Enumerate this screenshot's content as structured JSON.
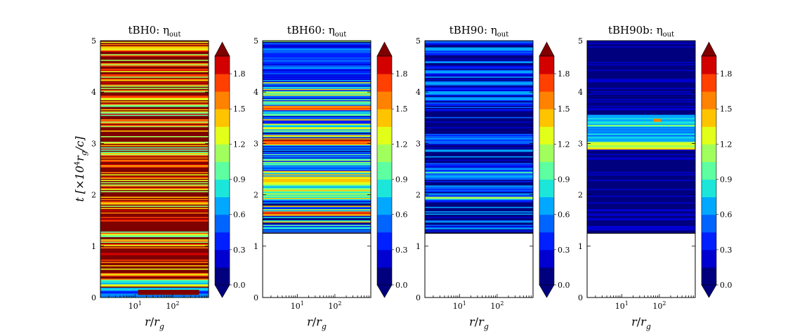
{
  "colors": {
    "jet": [
      "#00007f",
      "#0000d0",
      "#0020ff",
      "#0064ff",
      "#00a8ff",
      "#1ce6da",
      "#5dffa0",
      "#a0ff5d",
      "#e2ff1a",
      "#ffc400",
      "#ff8200",
      "#ff4000",
      "#d30000"
    ],
    "over": "#7f0000",
    "under": "#00007f"
  },
  "chart_data": [
    {
      "type": "heatmap",
      "run": "tBH0",
      "title": "tBH0: η",
      "title_sub": "out",
      "xscale": "log",
      "xlim": [
        1.2,
        900
      ],
      "ylim": [
        0,
        5
      ],
      "xticks": [
        {
          "value": 10,
          "base": "10",
          "exp": "1"
        },
        {
          "value": 100,
          "base": "10",
          "exp": "2"
        }
      ],
      "yticks": [
        "0",
        "1",
        "2",
        "3",
        "4",
        "5"
      ],
      "y_label": {
        "main": "t [×10",
        "exp": "4",
        "r": "r",
        "g": "g",
        "c": "/c]"
      },
      "x_label": {
        "r1": "r",
        "slash": "/",
        "r2": "r",
        "g": "g"
      },
      "data_start_t": 0.0,
      "base_level": 1.85,
      "variability": 0.9,
      "bands": [
        {
          "t": 0.1,
          "level": 0.2,
          "width": 0.1
        },
        {
          "t": 0.3,
          "level": 0.5,
          "width": 0.05
        }
      ],
      "patches": [
        {
          "t0": 0.05,
          "t1": 0.15,
          "r0": 12,
          "r1": 500,
          "level": 2.0
        }
      ],
      "colorbar": {
        "levels": [
          0.0,
          0.3,
          0.6,
          0.9,
          1.2,
          1.5,
          1.8
        ]
      }
    },
    {
      "type": "heatmap",
      "run": "tBH60",
      "title": "tBH60: η",
      "title_sub": "out",
      "xscale": "log",
      "xlim": [
        1.2,
        900
      ],
      "ylim": [
        0,
        5
      ],
      "xticks": [
        {
          "value": 10,
          "base": "10",
          "exp": "1"
        },
        {
          "value": 100,
          "base": "10",
          "exp": "2"
        }
      ],
      "yticks": [
        "0",
        "1",
        "2",
        "3",
        "4",
        "5"
      ],
      "x_label": {
        "r1": "r",
        "slash": "/",
        "r2": "r",
        "g": "g"
      },
      "data_start_t": 1.25,
      "base_level": 0.75,
      "variability": 0.75,
      "bands": [
        {
          "t": 1.65,
          "level": 1.9,
          "width": 0.04
        },
        {
          "t": 2.25,
          "level": 1.8,
          "width": 0.05
        },
        {
          "t": 3.05,
          "level": 2.0,
          "width": 0.04
        },
        {
          "t": 3.7,
          "level": 1.9,
          "width": 0.04
        },
        {
          "t": 4.6,
          "level": 0.2,
          "width": 0.4
        }
      ],
      "patches": [],
      "colorbar": {
        "levels": [
          0.0,
          0.3,
          0.6,
          0.9,
          1.2,
          1.5,
          1.8
        ]
      }
    },
    {
      "type": "heatmap",
      "run": "tBH90",
      "title": "tBH90: η",
      "title_sub": "out",
      "xscale": "log",
      "xlim": [
        1.2,
        900
      ],
      "ylim": [
        0,
        5
      ],
      "xticks": [
        {
          "value": 10,
          "base": "10",
          "exp": "1"
        },
        {
          "value": 100,
          "base": "10",
          "exp": "2"
        }
      ],
      "yticks": [
        "0",
        "1",
        "2",
        "3",
        "4",
        "5"
      ],
      "x_label": {
        "r1": "r",
        "slash": "/",
        "r2": "r",
        "g": "g"
      },
      "data_start_t": 1.25,
      "base_level": 0.25,
      "variability": 0.5,
      "bands": [
        {
          "t": 1.95,
          "level": 1.9,
          "width": 0.03
        },
        {
          "t": 2.4,
          "level": 0.8,
          "width": 0.08
        },
        {
          "t": 3.1,
          "level": 0.6,
          "width": 0.1
        }
      ],
      "patches": [],
      "colorbar": {
        "levels": [
          0.0,
          0.3,
          0.6,
          0.9,
          1.2,
          1.5,
          1.8
        ]
      }
    },
    {
      "type": "heatmap",
      "run": "tBH90b",
      "title": "tBH90b: η",
      "title_sub": "out",
      "xscale": "log",
      "xlim": [
        1.2,
        900
      ],
      "ylim": [
        0,
        5
      ],
      "xticks": [
        {
          "value": 10,
          "base": "10",
          "exp": "1"
        },
        {
          "value": 100,
          "base": "10",
          "exp": "2"
        }
      ],
      "yticks": [
        "0",
        "1",
        "2",
        "3",
        "4",
        "5"
      ],
      "x_label": {
        "r1": "r",
        "slash": "/",
        "r2": "r",
        "g": "g"
      },
      "data_start_t": 1.25,
      "base_level": 0.08,
      "variability": 0.12,
      "bands": [
        {
          "t": 2.97,
          "level": 1.7,
          "width": 0.08
        },
        {
          "t": 3.2,
          "level": 0.9,
          "width": 0.18
        },
        {
          "t": 3.45,
          "level": 1.0,
          "width": 0.12
        },
        {
          "t": 1.35,
          "level": 0.4,
          "width": 0.04
        }
      ],
      "patches": [
        {
          "t0": 3.42,
          "t1": 3.48,
          "r0": 70,
          "r1": 110,
          "level": 1.6
        }
      ],
      "colorbar": {
        "levels": [
          0.0,
          0.3,
          0.6,
          0.9,
          1.2,
          1.5,
          1.8
        ]
      }
    }
  ]
}
